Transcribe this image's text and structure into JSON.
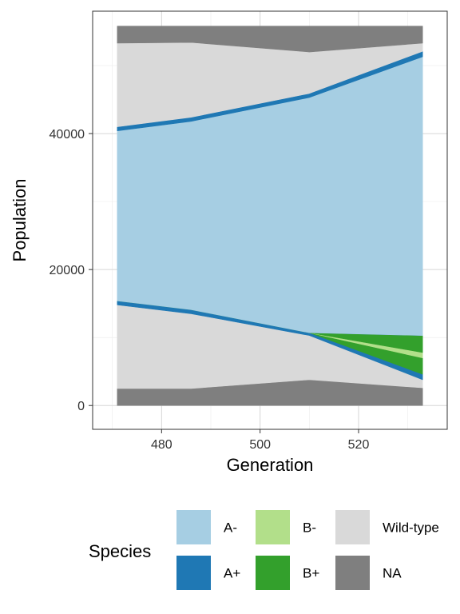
{
  "chart_data": {
    "type": "area",
    "title": "",
    "xlabel": "Generation",
    "ylabel": "Population",
    "x": [
      471,
      486,
      510,
      533
    ],
    "xlim": [
      466,
      538
    ],
    "ylim": [
      -3500,
      58000
    ],
    "x_ticks": [
      480,
      500,
      520
    ],
    "y_ticks": [
      0,
      20000,
      40000
    ],
    "grid": true,
    "stacking_order_bottom_to_top": [
      "NA",
      "Wild-type",
      "A+",
      "B+",
      "B-",
      "B+",
      "A+",
      "A-",
      "A+",
      "Wild-type",
      "NA"
    ],
    "layers": [
      {
        "species": "NA",
        "boundaries": [
          [
            0,
            2500
          ],
          [
            0,
            2500
          ],
          [
            0,
            3800
          ],
          [
            0,
            2600
          ]
        ]
      },
      {
        "species": "Wild-type",
        "boundaries": [
          [
            2500,
            14800
          ],
          [
            2500,
            13500
          ],
          [
            3800,
            10300
          ],
          [
            2600,
            3800
          ]
        ]
      },
      {
        "species": "A+",
        "boundaries": [
          [
            14800,
            15400
          ],
          [
            13500,
            14100
          ],
          [
            10300,
            10700
          ],
          [
            3800,
            4600
          ]
        ]
      },
      {
        "species": "B+",
        "boundaries": [
          [
            15400,
            15400
          ],
          [
            14100,
            14100
          ],
          [
            10700,
            10700
          ],
          [
            4600,
            7000
          ]
        ]
      },
      {
        "species": "B-",
        "boundaries": [
          [
            15400,
            15400
          ],
          [
            14100,
            14100
          ],
          [
            10700,
            10700
          ],
          [
            7000,
            7800
          ]
        ]
      },
      {
        "species": "B+",
        "boundaries": [
          [
            15400,
            15400
          ],
          [
            14100,
            14100
          ],
          [
            10700,
            10700
          ],
          [
            7800,
            10300
          ]
        ]
      },
      {
        "species": "A+",
        "boundaries": [
          [
            15400,
            15400
          ],
          [
            14100,
            14100
          ],
          [
            10700,
            10700
          ],
          [
            10300,
            10300
          ]
        ]
      },
      {
        "species": "A-",
        "boundaries": [
          [
            15400,
            40400
          ],
          [
            14100,
            41800
          ],
          [
            10700,
            45300
          ],
          [
            10300,
            51300
          ]
        ]
      },
      {
        "species": "A+",
        "boundaries": [
          [
            40400,
            41000
          ],
          [
            41800,
            42400
          ],
          [
            45300,
            45900
          ],
          [
            51300,
            52100
          ]
        ]
      },
      {
        "species": "Wild-type",
        "boundaries": [
          [
            41000,
            53300
          ],
          [
            42400,
            53400
          ],
          [
            45900,
            52000
          ],
          [
            52100,
            53300
          ]
        ]
      },
      {
        "species": "NA",
        "boundaries": [
          [
            53300,
            55800
          ],
          [
            53400,
            55800
          ],
          [
            52000,
            55800
          ],
          [
            53300,
            55800
          ]
        ]
      }
    ],
    "legend": {
      "title": "Species",
      "placement": "bottom",
      "items": [
        {
          "label": "A-",
          "color": "#a6cee3"
        },
        {
          "label": "A+",
          "color": "#1f78b4"
        },
        {
          "label": "B-",
          "color": "#b2df8a"
        },
        {
          "label": "B+",
          "color": "#33a02c"
        },
        {
          "label": "Wild-type",
          "color": "#d9d9d9"
        },
        {
          "label": "NA",
          "color": "#7f7f7f"
        }
      ]
    }
  }
}
